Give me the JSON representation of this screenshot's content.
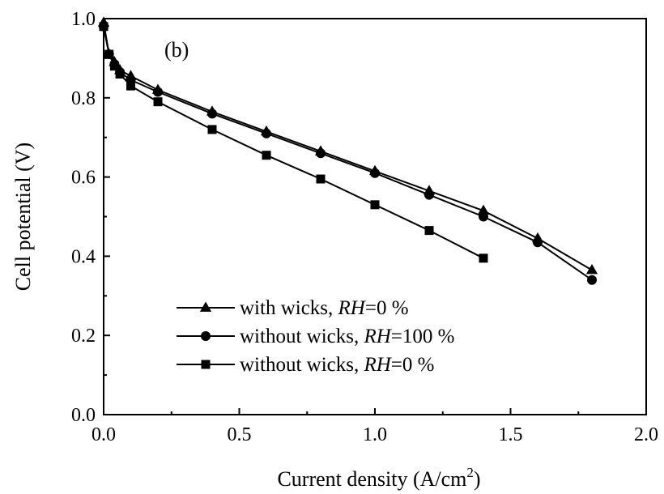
{
  "chart_data": {
    "type": "line",
    "title": "",
    "annotation": "(b)",
    "xlabel": "Current density (A/cm",
    "xlabel_sup": "2",
    "xlabel_suffix": ")",
    "ylabel": "Cell potential (V)",
    "xlim": [
      0.0,
      2.0
    ],
    "ylim": [
      0.0,
      1.0
    ],
    "x_ticks": [
      "0.0",
      "0.5",
      "1.0",
      "1.5",
      "2.0"
    ],
    "y_ticks": [
      "0.0",
      "0.2",
      "0.4",
      "0.6",
      "0.8",
      "1.0"
    ],
    "grid": false,
    "legend_position": "bottom-left",
    "series": [
      {
        "name_prefix": "with wicks, ",
        "name_italic": "RH",
        "name_suffix": "=0 %",
        "marker": "triangle",
        "x": [
          0.0,
          0.02,
          0.04,
          0.06,
          0.1,
          0.2,
          0.4,
          0.6,
          0.8,
          1.0,
          1.2,
          1.4,
          1.6,
          1.8
        ],
        "y": [
          0.99,
          0.91,
          0.89,
          0.87,
          0.855,
          0.82,
          0.765,
          0.715,
          0.665,
          0.615,
          0.565,
          0.515,
          0.445,
          0.365
        ]
      },
      {
        "name_prefix": "without wicks, ",
        "name_italic": "RH",
        "name_suffix": "=100 %",
        "marker": "circle",
        "x": [
          0.0,
          0.02,
          0.04,
          0.06,
          0.1,
          0.2,
          0.4,
          0.6,
          0.8,
          1.0,
          1.2,
          1.4,
          1.6,
          1.8
        ],
        "y": [
          0.98,
          0.91,
          0.885,
          0.865,
          0.845,
          0.815,
          0.76,
          0.71,
          0.66,
          0.61,
          0.555,
          0.5,
          0.435,
          0.34
        ]
      },
      {
        "name_prefix": "without wicks, ",
        "name_italic": "RH",
        "name_suffix": "=0 %",
        "marker": "square",
        "x": [
          0.0,
          0.02,
          0.04,
          0.06,
          0.1,
          0.2,
          0.4,
          0.6,
          0.8,
          1.0,
          1.2,
          1.4
        ],
        "y": [
          0.98,
          0.91,
          0.88,
          0.86,
          0.83,
          0.79,
          0.72,
          0.655,
          0.595,
          0.53,
          0.465,
          0.395
        ]
      }
    ]
  }
}
